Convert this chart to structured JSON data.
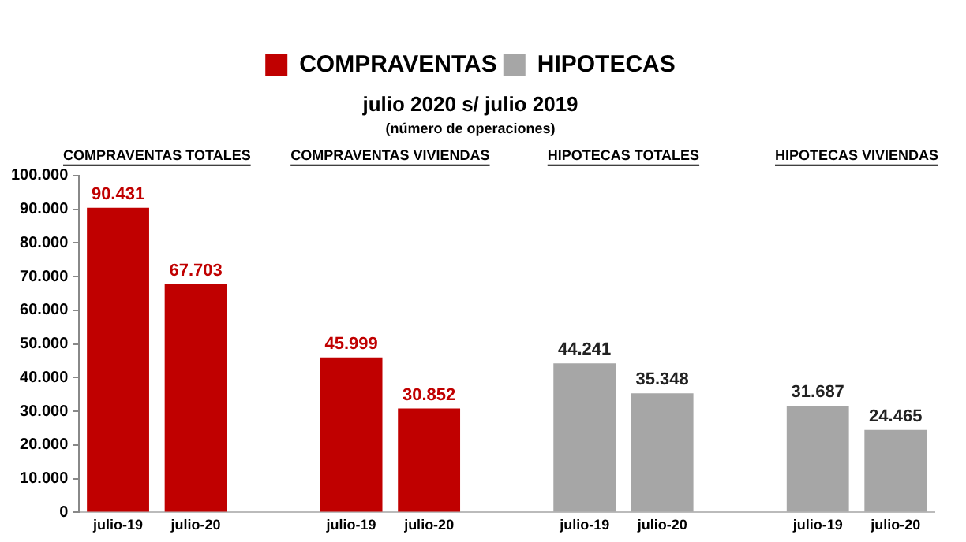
{
  "chart_data": {
    "type": "bar",
    "title": "julio 2020 s/ julio 2019",
    "subtitle": "(número de operaciones)",
    "categories": [
      "julio-19",
      "julio-20",
      null,
      "julio-19",
      "julio-20",
      null,
      "julio-19",
      "julio-20",
      null,
      "julio-19",
      "julio-20"
    ],
    "series": [
      {
        "name": "COMPRAVENTAS",
        "color": "#c00000",
        "values": [
          90431,
          67703,
          null,
          45999,
          30852,
          null,
          null,
          null,
          null,
          null,
          null
        ],
        "value_labels": [
          "90.431",
          "67.703",
          null,
          "45.999",
          "30.852",
          null,
          null,
          null,
          null,
          null,
          null
        ]
      },
      {
        "name": "HIPOTECAS",
        "color": "#a6a6a6",
        "values": [
          null,
          null,
          null,
          null,
          null,
          null,
          44241,
          35348,
          null,
          31687,
          24465
        ],
        "value_labels": [
          null,
          null,
          null,
          null,
          null,
          null,
          "44.241",
          "35.348",
          null,
          "31.687",
          "24.465"
        ]
      }
    ],
    "annotations": [
      "COMPRAVENTAS TOTALES",
      "COMPRAVENTAS VIVIENDAS",
      "HIPOTECAS TOTALES",
      "HIPOTECAS VIVIENDAS"
    ],
    "ylim": [
      0,
      100000
    ],
    "yticks": [
      {
        "value": 0,
        "label": "0"
      },
      {
        "value": 10000,
        "label": "10.000"
      },
      {
        "value": 20000,
        "label": "20.000"
      },
      {
        "value": 30000,
        "label": "30.000"
      },
      {
        "value": 40000,
        "label": "40.000"
      },
      {
        "value": 50000,
        "label": "50.000"
      },
      {
        "value": 60000,
        "label": "60.000"
      },
      {
        "value": 70000,
        "label": "70.000"
      },
      {
        "value": 80000,
        "label": "80.000"
      },
      {
        "value": 90000,
        "label": "90.000"
      },
      {
        "value": 100000,
        "label": "100.000"
      }
    ],
    "grid": false,
    "legend": "top"
  }
}
